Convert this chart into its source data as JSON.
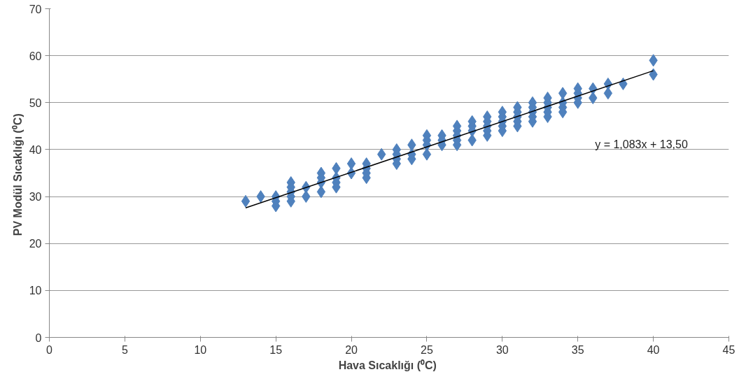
{
  "chart_data": {
    "type": "scatter",
    "xlabel": "Hava Sıcaklığı  (⁰C)",
    "ylabel": "PV Modül Sıcaklığı  (⁰C)",
    "xlim": [
      0,
      45
    ],
    "xticks": [
      0,
      5,
      10,
      15,
      20,
      25,
      30,
      35,
      40,
      45
    ],
    "ylim": [
      0,
      70
    ],
    "yticks": [
      0,
      10,
      20,
      30,
      40,
      50,
      60,
      70
    ],
    "grid": "y",
    "marker": "diamond",
    "series": [
      {
        "color": "#4f81bd",
        "x": [
          13,
          14,
          15,
          15,
          15,
          16,
          16,
          16,
          16,
          16,
          17,
          17,
          18,
          18,
          18,
          18,
          19,
          19,
          19,
          19,
          20,
          20,
          21,
          21,
          21,
          21,
          22,
          23,
          23,
          23,
          23,
          24,
          24,
          24,
          25,
          25,
          25,
          25,
          26,
          26,
          26,
          27,
          27,
          27,
          27,
          27,
          28,
          28,
          28,
          28,
          29,
          29,
          29,
          29,
          29,
          30,
          30,
          30,
          30,
          30,
          31,
          31,
          31,
          31,
          31,
          32,
          32,
          32,
          32,
          32,
          33,
          33,
          33,
          33,
          33,
          34,
          34,
          34,
          34,
          35,
          35,
          35,
          35,
          36,
          36,
          37,
          37,
          38,
          40,
          40
        ],
        "values": [
          29,
          30,
          28,
          29,
          30,
          29,
          30,
          31,
          32,
          33,
          30,
          32,
          31,
          33,
          34,
          35,
          32,
          33,
          34,
          36,
          35,
          37,
          34,
          35,
          36,
          37,
          39,
          37,
          38,
          39,
          40,
          38,
          39,
          41,
          39,
          41,
          42,
          43,
          41,
          42,
          43,
          41,
          42,
          43,
          44,
          45,
          42,
          44,
          45,
          46,
          43,
          44,
          45,
          46,
          47,
          44,
          45,
          46,
          47,
          48,
          45,
          46,
          47,
          48,
          49,
          46,
          47,
          48,
          49,
          50,
          47,
          48,
          49,
          50,
          51,
          48,
          49,
          50,
          52,
          50,
          51,
          52,
          53,
          51,
          53,
          52,
          54,
          54,
          56,
          59
        ]
      },
      {
        "type": "line",
        "color": "#000000",
        "marker": "none",
        "line_style": "solid",
        "x": [
          13,
          40
        ],
        "values": [
          27.6,
          56.8
        ]
      }
    ],
    "annotations": [
      "y = 1,083x + 13,50"
    ]
  }
}
